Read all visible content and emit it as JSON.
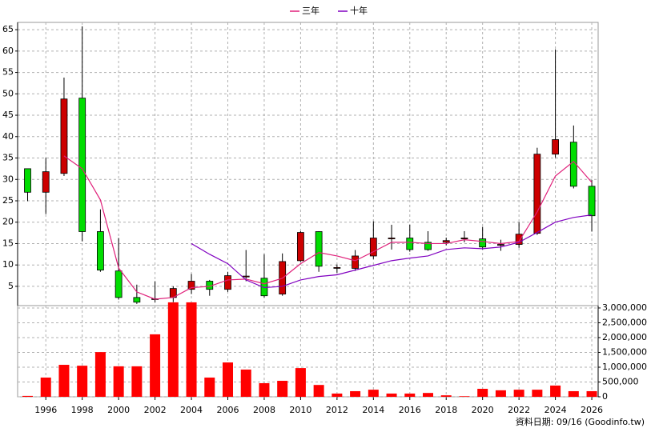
{
  "chart_data": [
    {
      "type": "candlestick",
      "x": [
        1995,
        1996,
        1997,
        1998,
        1999,
        2000,
        2001,
        2002,
        2003,
        2004,
        2005,
        2006,
        2007,
        2008,
        2009,
        2010,
        2011,
        2012,
        2013,
        2014,
        2015,
        2016,
        2017,
        2018,
        2019,
        2020,
        2021,
        2022,
        2023,
        2024,
        2025,
        2026
      ],
      "open": [
        32.5,
        27,
        31.4,
        49,
        17.8,
        8.6,
        2.4,
        2,
        2.4,
        4.3,
        6.2,
        4.3,
        7.2,
        6.9,
        3.2,
        11,
        17.8,
        9.3,
        9.2,
        12.1,
        16.1,
        16.3,
        15.3,
        15.3,
        16.1,
        16.1,
        14.6,
        14.8,
        17.4,
        35.9,
        38.7,
        28.4
      ],
      "high": [
        32.5,
        35,
        53.8,
        65.8,
        23,
        16.3,
        5.4,
        6.2,
        5,
        7.9,
        6.5,
        8.4,
        13.5,
        12.5,
        12.7,
        17.9,
        17.9,
        10.1,
        13.5,
        20.2,
        19.4,
        19.4,
        17.9,
        16.4,
        17.9,
        18.9,
        15.9,
        20,
        37.4,
        60.4,
        42.6,
        29.9
      ],
      "low": [
        24.9,
        21.9,
        30.8,
        15.5,
        8.4,
        1.9,
        0.9,
        1.3,
        1.3,
        3.2,
        2.8,
        3.7,
        6.2,
        2.4,
        2.8,
        10.7,
        8.4,
        8.2,
        8.6,
        11.4,
        13.6,
        13.1,
        13.3,
        14.6,
        15.3,
        13.6,
        13.3,
        14,
        17,
        35.1,
        27.9,
        17.8
      ],
      "close": [
        27,
        31.8,
        48.8,
        17.8,
        8.8,
        2.4,
        1.3,
        2.1,
        4.5,
        6.2,
        4.3,
        7.5,
        7.4,
        2.8,
        10.8,
        17.6,
        9.7,
        9.4,
        12.1,
        16.3,
        16.3,
        13.6,
        13.6,
        15.7,
        16.3,
        14.2,
        14.8,
        17.2,
        35.9,
        39.3,
        28.4,
        21.5
      ],
      "up_color": "#cc0000",
      "down_color": "#00dd00",
      "series": [
        {
          "name": "三年",
          "color": "#e0207a",
          "values": [
            null,
            null,
            35.5,
            32.5,
            25.2,
            9.3,
            3.7,
            2,
            2.4,
            4.7,
            5,
            6.5,
            6.7,
            5.6,
            6.9,
            10.3,
            12.9,
            12.1,
            11,
            13.1,
            15.3,
            15.3,
            15,
            15,
            15.9,
            15.5,
            15,
            15.5,
            22.4,
            30.8,
            34.2,
            29.3
          ]
        },
        {
          "name": "十年",
          "color": "#8000c0",
          "values": [
            null,
            null,
            null,
            null,
            null,
            null,
            null,
            null,
            null,
            15,
            12.5,
            10.3,
            6.5,
            4.7,
            5,
            6.5,
            7.3,
            7.7,
            8.8,
            9.9,
            11,
            11.6,
            12.1,
            13.6,
            14,
            13.8,
            14.2,
            15.3,
            17.6,
            20,
            21.1,
            21.7
          ]
        }
      ],
      "xlim": [
        1994.45,
        2026.35
      ],
      "ylim": [
        0.5,
        66.7
      ],
      "yticks": [
        5,
        10,
        15,
        20,
        25,
        30,
        35,
        40,
        45,
        50,
        55,
        60,
        65
      ],
      "grid": true,
      "legend": "top"
    },
    {
      "type": "bar",
      "x": [
        1995,
        1996,
        1997,
        1998,
        1999,
        2000,
        2001,
        2002,
        2003,
        2004,
        2005,
        2006,
        2007,
        2008,
        2009,
        2010,
        2011,
        2012,
        2013,
        2014,
        2015,
        2016,
        2017,
        2018,
        2019,
        2020,
        2021,
        2022,
        2023,
        2024,
        2025,
        2026
      ],
      "values": [
        30000,
        650000,
        1080000,
        1050000,
        1510000,
        1030000,
        1030000,
        2110000,
        3190000,
        3190000,
        650000,
        1160000,
        920000,
        460000,
        540000,
        970000,
        400000,
        110000,
        190000,
        240000,
        110000,
        110000,
        130000,
        50000,
        20000,
        270000,
        220000,
        240000,
        240000,
        380000,
        190000,
        190000
      ],
      "color": "#ff0000",
      "xlim": [
        1994.45,
        2026.35
      ],
      "xticks": [
        1996,
        1998,
        2000,
        2002,
        2004,
        2006,
        2008,
        2010,
        2012,
        2014,
        2016,
        2018,
        2020,
        2022,
        2024,
        2026
      ],
      "ylim": [
        0,
        3080000
      ],
      "yticks": [
        0,
        {
          "value": 500000,
          "label": "500,000"
        },
        {
          "value": 1000000,
          "label": "1,000,000"
        },
        {
          "value": 1500000,
          "label": "1,500,000"
        },
        {
          "value": 2000000,
          "label": "2,000,000"
        },
        {
          "value": 2500000,
          "label": "2,500,000"
        },
        {
          "value": 3000000,
          "label": "3,000,000"
        }
      ],
      "grid": true,
      "yaxis": "right"
    }
  ],
  "footer": "資料日期: 09/16 (Goodinfo.tw)"
}
